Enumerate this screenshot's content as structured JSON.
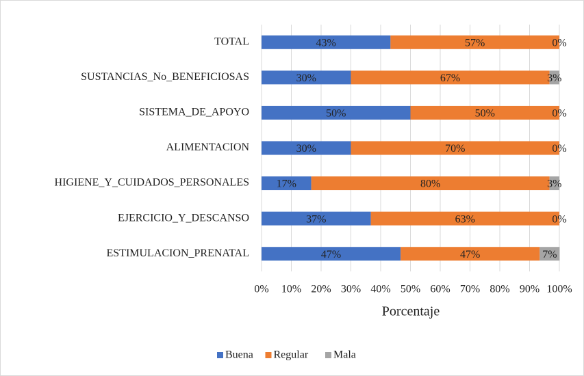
{
  "chart_data": {
    "type": "stacked_barh",
    "categories": [
      "TOTAL",
      "SUSTANCIAS_No_BENEFICIOSAS",
      "SISTEMA_DE_APOYO",
      "ALIMENTACION",
      "HIGIENE_Y_CUIDADOS_PERSONALES",
      "EJERCICIO_Y_DESCANSO",
      "ESTIMULACION_PRENATAL"
    ],
    "series": [
      {
        "name": "Buena",
        "color": "#4472c4",
        "values": [
          43.3,
          30,
          50,
          30,
          16.7,
          36.7,
          46.7
        ],
        "value_labels": [
          "43%",
          "30%",
          "50%",
          "30%",
          "17%",
          "37%",
          "47%"
        ]
      },
      {
        "name": "Regular",
        "color": "#ed7d31",
        "values": [
          56.7,
          66.7,
          50,
          70,
          80,
          63.3,
          46.7
        ],
        "value_labels": [
          "57%",
          "67%",
          "50%",
          "70%",
          "80%",
          "63%",
          "47%"
        ]
      },
      {
        "name": "Mala",
        "color": "#a5a5a5",
        "values": [
          0,
          3.3,
          0,
          0,
          3.3,
          0,
          6.7
        ],
        "value_labels": [
          "0%",
          "3%",
          "0%",
          "0%",
          "3%",
          "0%",
          "7%"
        ]
      }
    ],
    "xlabel": "Porcentaje",
    "xlim": [
      0,
      100
    ],
    "xticks": [
      {
        "value": 0,
        "label": "0%"
      },
      {
        "value": 10,
        "label": "10%"
      },
      {
        "value": 20,
        "label": "20%"
      },
      {
        "value": 30,
        "label": "30%"
      },
      {
        "value": 40,
        "label": "40%"
      },
      {
        "value": 50,
        "label": "50%"
      },
      {
        "value": 60,
        "label": "60%"
      },
      {
        "value": 70,
        "label": "70%"
      },
      {
        "value": 80,
        "label": "80%"
      },
      {
        "value": 90,
        "label": "90%"
      },
      {
        "value": 100,
        "label": "100%"
      }
    ],
    "grid": true,
    "legend": "bottom"
  }
}
